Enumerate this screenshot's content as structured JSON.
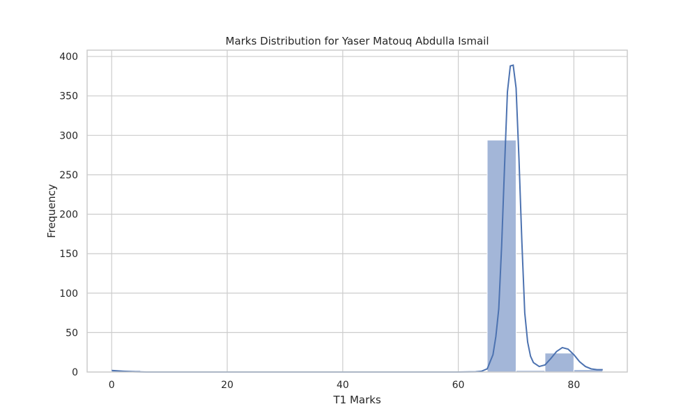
{
  "chart_data": {
    "type": "bar",
    "title": "Marks Distribution for Yaser Matouq Abdulla Ismail",
    "xlabel": "T1 Marks",
    "ylabel": "Frequency",
    "xlim": [
      -4.25,
      89.25
    ],
    "ylim": [
      0,
      408
    ],
    "xticks": [
      0,
      20,
      40,
      60,
      80
    ],
    "yticks": [
      0,
      50,
      100,
      150,
      200,
      250,
      300,
      350,
      400
    ],
    "grid": true,
    "bins": [
      {
        "x0": 0,
        "x1": 5,
        "count": 2
      },
      {
        "x0": 5,
        "x1": 10,
        "count": 0
      },
      {
        "x0": 10,
        "x1": 15,
        "count": 0
      },
      {
        "x0": 15,
        "x1": 20,
        "count": 0
      },
      {
        "x0": 20,
        "x1": 25,
        "count": 0
      },
      {
        "x0": 25,
        "x1": 30,
        "count": 0
      },
      {
        "x0": 30,
        "x1": 35,
        "count": 0
      },
      {
        "x0": 35,
        "x1": 40,
        "count": 0
      },
      {
        "x0": 40,
        "x1": 45,
        "count": 0
      },
      {
        "x0": 45,
        "x1": 50,
        "count": 0
      },
      {
        "x0": 50,
        "x1": 55,
        "count": 0
      },
      {
        "x0": 55,
        "x1": 60,
        "count": 0
      },
      {
        "x0": 60,
        "x1": 65,
        "count": 0
      },
      {
        "x0": 65,
        "x1": 70,
        "count": 294
      },
      {
        "x0": 70,
        "x1": 75,
        "count": 2
      },
      {
        "x0": 75,
        "x1": 80,
        "count": 24
      },
      {
        "x0": 80,
        "x1": 85,
        "count": 3
      }
    ],
    "kde": {
      "x": [
        0,
        2,
        4,
        6,
        10,
        20,
        40,
        60,
        63,
        64,
        65,
        66,
        66.5,
        67,
        67.5,
        68,
        68.5,
        69,
        69.5,
        70,
        70.5,
        71,
        71.5,
        72,
        72.5,
        73,
        74,
        75,
        76,
        77,
        78,
        79,
        80,
        81,
        82,
        83,
        84,
        85
      ],
      "y": [
        2,
        1,
        0.3,
        0,
        0,
        0,
        0,
        0,
        0.3,
        1,
        4,
        22,
        45,
        80,
        160,
        260,
        355,
        388,
        389,
        360,
        270,
        165,
        75,
        38,
        20,
        12,
        7,
        9,
        17,
        26,
        31,
        29,
        22,
        13,
        7,
        4,
        3,
        3
      ]
    },
    "colors": {
      "bar_fill": "#a3b6d8",
      "line": "#4c72b0",
      "grid": "#cccccc",
      "frame": "#cccccc"
    }
  }
}
